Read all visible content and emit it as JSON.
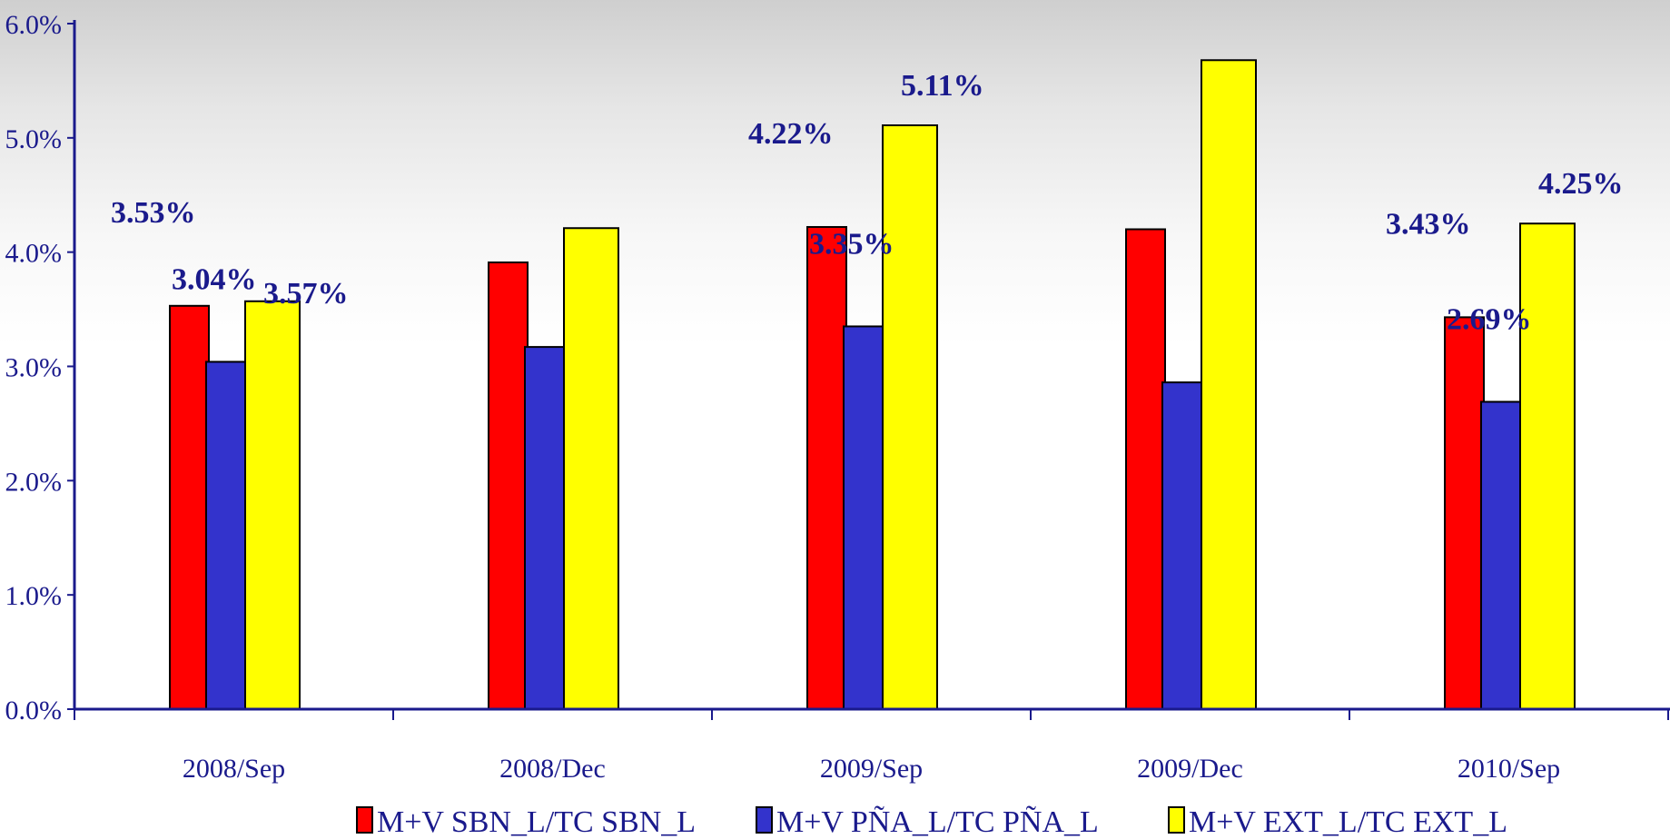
{
  "chart_data": {
    "type": "bar",
    "categories": [
      "2008/Sep",
      "2008/Dec",
      "2009/Sep",
      "2009/Dec",
      "2010/Sep"
    ],
    "series": [
      {
        "name": "M+V SBN_L/TC SBN_L",
        "color": "#ff0000",
        "values": [
          3.53,
          3.91,
          4.22,
          4.2,
          3.43
        ]
      },
      {
        "name": "M+V PÑA_L/TC PÑA_L",
        "color": "#3333cc",
        "values": [
          3.04,
          3.17,
          3.35,
          2.86,
          2.69
        ]
      },
      {
        "name": "M+V EXT_L/TC EXT_L",
        "color": "#ffff00",
        "values": [
          3.57,
          4.21,
          5.11,
          5.68,
          4.25
        ]
      }
    ],
    "data_labels": [
      {
        "series": 0,
        "category": 0,
        "text": "3.53%"
      },
      {
        "series": 1,
        "category": 0,
        "text": "3.04%"
      },
      {
        "series": 2,
        "category": 0,
        "text": "3.57%"
      },
      {
        "series": 0,
        "category": 2,
        "text": "4.22%"
      },
      {
        "series": 1,
        "category": 2,
        "text": "3.35%"
      },
      {
        "series": 2,
        "category": 2,
        "text": "5.11%"
      },
      {
        "series": 0,
        "category": 4,
        "text": "3.43%"
      },
      {
        "series": 1,
        "category": 4,
        "text": "2.69%"
      },
      {
        "series": 2,
        "category": 4,
        "text": "4.25%"
      }
    ],
    "y_ticks": [
      "0.0%",
      "1.0%",
      "2.0%",
      "3.0%",
      "4.0%",
      "5.0%",
      "6.0%"
    ],
    "ylim": [
      0,
      6
    ],
    "axis_color": "#1a1a8c",
    "legend_position": "bottom"
  }
}
